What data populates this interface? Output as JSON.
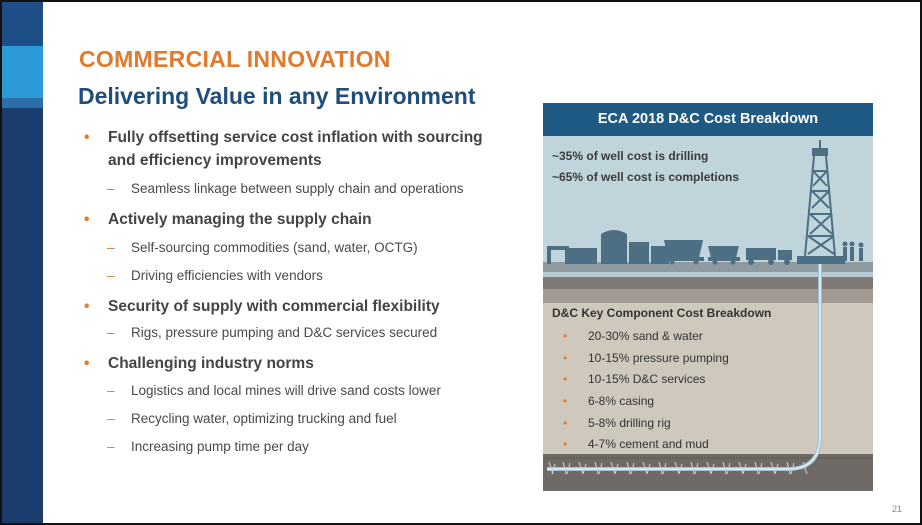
{
  "slide": {
    "title": "COMMERCIAL INNOVATION",
    "subtitle": "Delivering Value in any Environment",
    "page_number": "21"
  },
  "bullets": [
    {
      "text": "Fully offsetting service cost inflation with sourcing and efficiency improvements",
      "sub": [
        "Seamless linkage between supply chain and operations"
      ]
    },
    {
      "text": "Actively managing the supply chain",
      "sub": [
        "Self-sourcing commodities (sand, water, OCTG)",
        "Driving efficiencies with vendors"
      ]
    },
    {
      "text": "Security of supply with commercial flexibility",
      "sub": [
        "Rigs, pressure pumping and D&C services secured"
      ]
    },
    {
      "text": "Challenging industry norms",
      "sub": [
        "Logistics and local mines will drive sand costs lower",
        "Recycling water, optimizing trucking and fuel",
        "Increasing pump time per day"
      ]
    }
  ],
  "panel": {
    "header": "ECA 2018 D&C Cost Breakdown",
    "stats": [
      "~35% of well cost is drilling",
      "~65% of well cost is completions"
    ],
    "components_title": "D&C Key Component Cost Breakdown",
    "components": [
      "20-30% sand & water",
      "10-15% pressure pumping",
      "10-15% D&C services",
      "6-8% casing",
      "5-8% drilling rig",
      "4-7% cement and mud"
    ]
  },
  "colors": {
    "title_orange": "#e07a2c",
    "subtitle_blue": "#1f4e7d",
    "panel_header": "#1f5a84",
    "sky": "#bfd5db",
    "ground_dark": "#6f6a66",
    "ground_light": "#cfc8bd"
  },
  "icons": [
    "drilling-rig-icon",
    "storage-tank-icon",
    "railcar-icon",
    "truck-icon",
    "worker-icon"
  ]
}
